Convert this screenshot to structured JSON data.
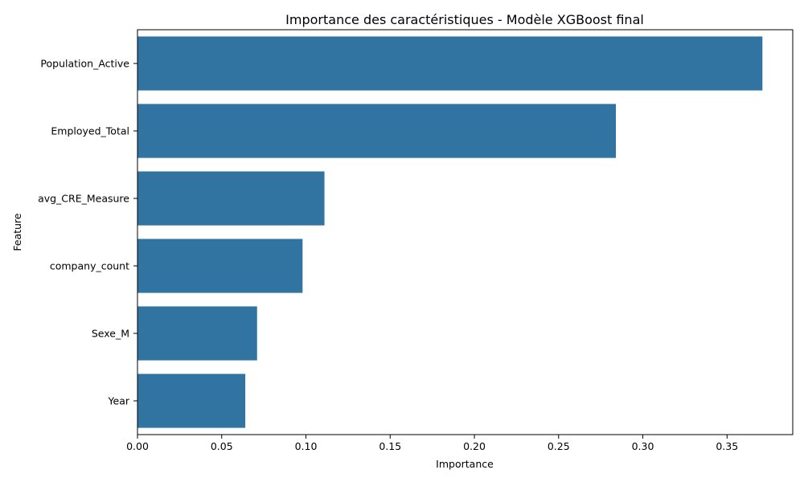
{
  "chart_data": {
    "type": "bar",
    "orientation": "horizontal",
    "title": "Importance des caractéristiques - Modèle XGBoost final",
    "xlabel": "Importance",
    "ylabel": "Feature",
    "categories": [
      "Population_Active",
      "Employed_Total",
      "avg_CRE_Measure",
      "company_count",
      "Sexe_M",
      "Year"
    ],
    "values": [
      0.371,
      0.284,
      0.111,
      0.098,
      0.071,
      0.064
    ],
    "xlim": [
      0,
      0.389
    ],
    "xticks": [
      0.0,
      0.05,
      0.1,
      0.15,
      0.2,
      0.25,
      0.3,
      0.35
    ],
    "xtick_labels": [
      "0.00",
      "0.05",
      "0.10",
      "0.15",
      "0.20",
      "0.25",
      "0.30",
      "0.35"
    ],
    "bar_color": "#3274a1",
    "grid": false,
    "legend": "none"
  }
}
